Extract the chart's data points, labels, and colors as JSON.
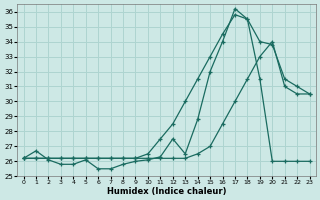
{
  "xlabel": "Humidex (Indice chaleur)",
  "bg_color": "#cde8e5",
  "grid_color": "#aed4d0",
  "line_color": "#1a6b60",
  "xlim": [
    -0.5,
    23.5
  ],
  "ylim": [
    25,
    36.5
  ],
  "yticks": [
    25,
    26,
    27,
    28,
    29,
    30,
    31,
    32,
    33,
    34,
    35,
    36
  ],
  "xticks": [
    0,
    1,
    2,
    3,
    4,
    5,
    6,
    7,
    8,
    9,
    10,
    11,
    12,
    13,
    14,
    15,
    16,
    17,
    18,
    19,
    20,
    21,
    22,
    23
  ],
  "line1_x": [
    0,
    1,
    2,
    3,
    4,
    5,
    6,
    7,
    8,
    9,
    10,
    11,
    12,
    13,
    14,
    15,
    16,
    17,
    18,
    19,
    20,
    21,
    22,
    23
  ],
  "line1_y": [
    26.2,
    26.7,
    26.1,
    25.8,
    25.8,
    26.1,
    25.5,
    25.5,
    25.8,
    26.0,
    26.1,
    26.3,
    27.5,
    26.5,
    28.8,
    32.0,
    34.0,
    36.2,
    35.5,
    31.5,
    26.0,
    26.0,
    26.0,
    26.0
  ],
  "line2_x": [
    0,
    1,
    2,
    3,
    4,
    5,
    6,
    7,
    8,
    9,
    10,
    11,
    12,
    13,
    14,
    15,
    16,
    17,
    18,
    19,
    20,
    21,
    22,
    23
  ],
  "line2_y": [
    26.2,
    26.2,
    26.2,
    26.2,
    26.2,
    26.2,
    26.2,
    26.2,
    26.2,
    26.2,
    26.5,
    27.5,
    28.5,
    30.0,
    31.5,
    33.0,
    34.5,
    35.8,
    35.5,
    34.0,
    33.8,
    31.5,
    31.0,
    30.5
  ],
  "line3_x": [
    0,
    1,
    2,
    3,
    4,
    5,
    6,
    7,
    8,
    9,
    10,
    11,
    12,
    13,
    14,
    15,
    16,
    17,
    18,
    19,
    20,
    21,
    22,
    23
  ],
  "line3_y": [
    26.2,
    26.2,
    26.2,
    26.2,
    26.2,
    26.2,
    26.2,
    26.2,
    26.2,
    26.2,
    26.2,
    26.2,
    26.2,
    26.2,
    26.5,
    27.0,
    28.5,
    30.0,
    31.5,
    33.0,
    34.0,
    31.0,
    30.5,
    30.5
  ]
}
